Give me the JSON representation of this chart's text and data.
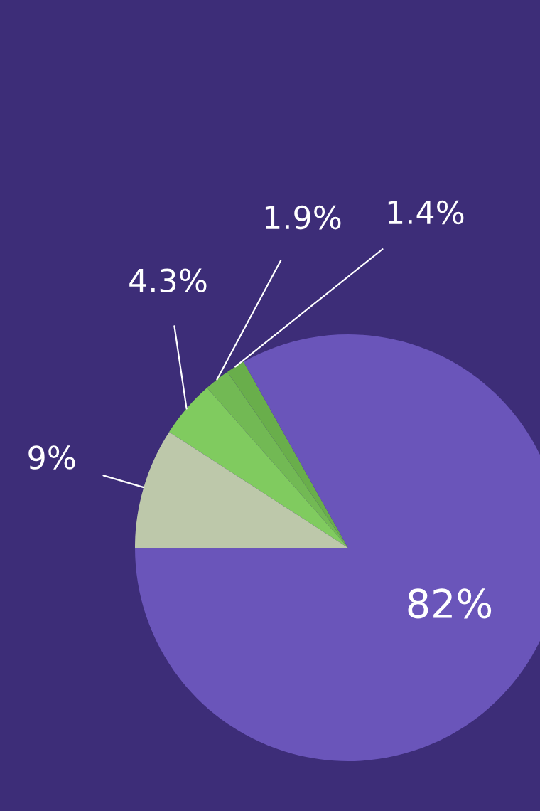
{
  "chart_data": {
    "type": "pie",
    "categories": [
      null,
      null,
      null,
      null,
      null
    ],
    "values": [
      1.4,
      1.9,
      4.3,
      9,
      82
    ],
    "colors": [
      "#69ae4b",
      "#72b954",
      "#80cb5f",
      "#bdc8aa",
      "#6a55ba"
    ],
    "value_labels": [
      "1.4%",
      "1.9%",
      "4.3%",
      "9%",
      "82%"
    ]
  }
}
